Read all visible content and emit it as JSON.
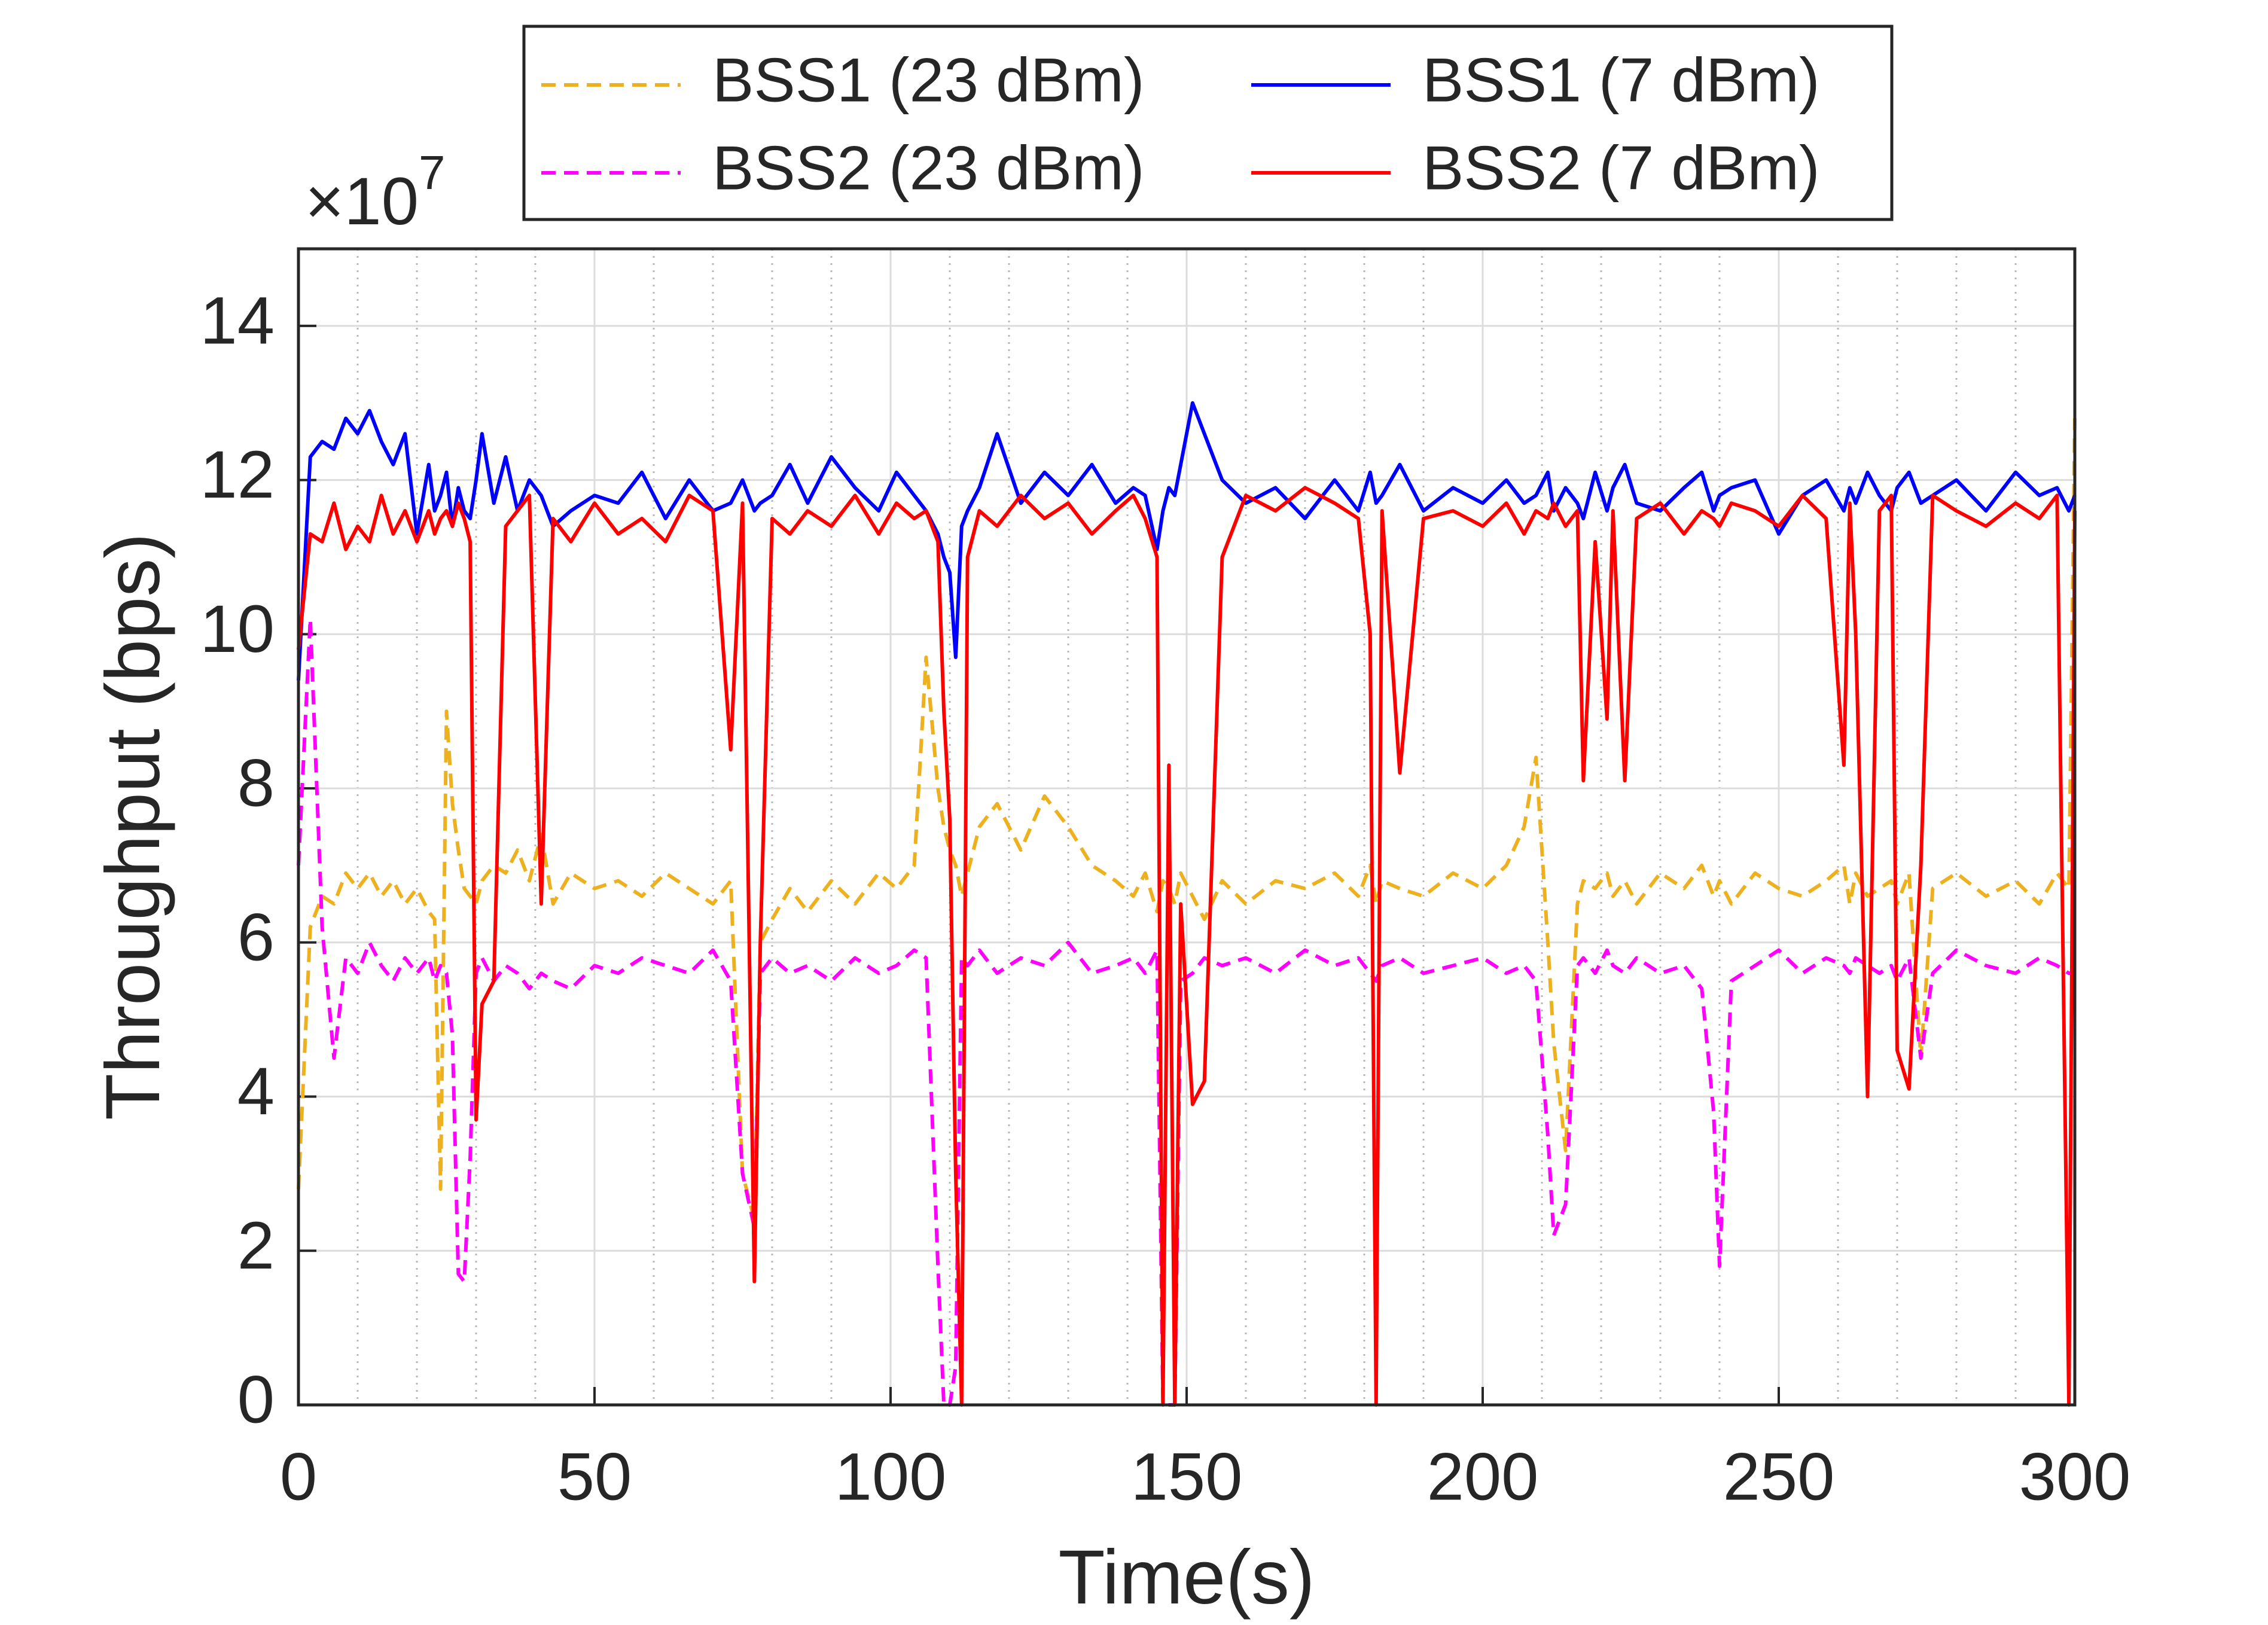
{
  "chart_data": {
    "type": "line",
    "xlabel": "Time(s)",
    "ylabel": "Throughput (bps)",
    "y_multiplier": {
      "base": "×10",
      "exponent": "7"
    },
    "xlim": [
      0,
      300
    ],
    "xticks": [
      0,
      50,
      100,
      150,
      200,
      250,
      300
    ],
    "ylim": [
      0,
      15
    ],
    "yticks": [
      0,
      2,
      4,
      6,
      8,
      10,
      12,
      14
    ],
    "grid": true,
    "minor_grid_x": true,
    "legend_position": "top",
    "legend_columns": 2,
    "x": [
      0,
      2,
      4,
      6,
      8,
      10,
      12,
      14,
      16,
      18,
      20,
      22,
      23,
      24,
      25,
      26,
      27,
      28,
      29,
      30,
      31,
      33,
      35,
      37,
      39,
      41,
      43,
      46,
      50,
      54,
      58,
      62,
      66,
      70,
      73,
      75,
      77,
      78,
      80,
      83,
      86,
      90,
      94,
      98,
      101,
      104,
      106,
      108,
      109,
      110,
      111,
      112,
      113,
      115,
      118,
      122,
      126,
      130,
      134,
      138,
      141,
      143,
      145,
      146,
      147,
      148,
      149,
      151,
      153,
      156,
      160,
      165,
      170,
      175,
      179,
      181,
      182,
      183,
      186,
      190,
      195,
      200,
      204,
      207,
      209,
      211,
      212,
      214,
      216,
      217,
      219,
      221,
      222,
      224,
      226,
      230,
      234,
      237,
      239,
      240,
      242,
      246,
      250,
      254,
      258,
      261,
      262,
      263,
      265,
      267,
      269,
      270,
      272,
      274,
      276,
      280,
      285,
      290,
      294,
      297,
      299,
      300
    ],
    "series": [
      {
        "name": "BSS1 (23 dBm)",
        "color": "#EDB120",
        "dashed": true,
        "values": [
          2.8,
          6.2,
          6.6,
          6.5,
          6.9,
          6.7,
          6.9,
          6.6,
          6.8,
          6.5,
          6.7,
          6.4,
          6.3,
          2.8,
          9.0,
          7.8,
          7.2,
          6.7,
          6.6,
          6.5,
          6.8,
          7.0,
          6.9,
          7.2,
          6.8,
          7.4,
          6.5,
          6.9,
          6.7,
          6.8,
          6.6,
          6.9,
          6.7,
          6.5,
          6.8,
          3.0,
          2.4,
          6.0,
          6.3,
          6.7,
          6.4,
          6.8,
          6.5,
          6.9,
          6.7,
          7.0,
          9.7,
          8.0,
          7.5,
          7.2,
          7.0,
          6.6,
          6.9,
          7.5,
          7.8,
          7.2,
          7.9,
          7.5,
          7.0,
          6.8,
          6.6,
          6.9,
          6.4,
          6.8,
          6.7,
          6.5,
          6.9,
          6.6,
          6.3,
          6.8,
          6.5,
          6.8,
          6.7,
          6.9,
          6.6,
          7.0,
          6.5,
          6.8,
          6.7,
          6.6,
          6.9,
          6.7,
          7.0,
          7.5,
          8.4,
          6.0,
          4.7,
          3.3,
          6.5,
          6.8,
          6.7,
          6.9,
          6.6,
          6.8,
          6.5,
          6.9,
          6.7,
          7.0,
          6.6,
          6.8,
          6.5,
          6.9,
          6.7,
          6.6,
          6.8,
          7.0,
          6.5,
          6.9,
          6.6,
          6.7,
          6.8,
          6.5,
          6.9,
          4.5,
          6.7,
          6.9,
          6.6,
          6.8,
          6.5,
          6.9,
          6.7,
          12.8
        ]
      },
      {
        "name": "BSS2 (23 dBm)",
        "color": "#FF00FF",
        "dashed": true,
        "values": [
          7.0,
          10.2,
          6.2,
          4.5,
          5.8,
          5.6,
          6.0,
          5.7,
          5.5,
          5.8,
          5.6,
          5.8,
          5.5,
          5.7,
          5.6,
          4.8,
          1.7,
          1.6,
          3.2,
          5.6,
          5.8,
          5.5,
          5.7,
          5.6,
          5.4,
          5.6,
          5.5,
          5.4,
          5.7,
          5.6,
          5.8,
          5.7,
          5.6,
          5.9,
          5.5,
          3.0,
          2.3,
          5.6,
          5.8,
          5.6,
          5.7,
          5.5,
          5.8,
          5.6,
          5.7,
          5.9,
          5.8,
          1.8,
          0,
          0,
          0.5,
          5.8,
          5.7,
          5.9,
          5.6,
          5.8,
          5.7,
          6.0,
          5.6,
          5.7,
          5.8,
          5.6,
          5.9,
          0,
          0,
          0,
          5.5,
          5.6,
          5.8,
          5.7,
          5.8,
          5.6,
          5.9,
          5.7,
          5.8,
          5.6,
          5.5,
          5.7,
          5.8,
          5.6,
          5.7,
          5.8,
          5.6,
          5.7,
          5.5,
          3.5,
          2.2,
          2.6,
          5.7,
          5.8,
          5.6,
          5.9,
          5.7,
          5.6,
          5.8,
          5.6,
          5.7,
          5.4,
          3.8,
          1.8,
          5.5,
          5.7,
          5.9,
          5.6,
          5.8,
          5.7,
          5.6,
          5.8,
          5.7,
          5.6,
          5.7,
          5.5,
          5.8,
          4.5,
          5.6,
          5.9,
          5.7,
          5.6,
          5.8,
          5.7,
          5.6,
          5.6
        ]
      },
      {
        "name": "BSS1 (7 dBm)",
        "color": "#0000FF",
        "dashed": false,
        "values": [
          9.4,
          12.3,
          12.5,
          12.4,
          12.8,
          12.6,
          12.9,
          12.5,
          12.2,
          12.6,
          11.3,
          12.2,
          11.6,
          11.8,
          12.1,
          11.4,
          11.9,
          11.6,
          11.5,
          12.0,
          12.6,
          11.7,
          12.3,
          11.6,
          12.0,
          11.8,
          11.4,
          11.6,
          11.8,
          11.7,
          12.1,
          11.5,
          12.0,
          11.6,
          11.7,
          12.0,
          11.6,
          11.7,
          11.8,
          12.2,
          11.7,
          12.3,
          11.9,
          11.6,
          12.1,
          11.8,
          11.6,
          11.3,
          11.0,
          10.8,
          9.7,
          11.4,
          11.6,
          11.9,
          12.6,
          11.7,
          12.1,
          11.8,
          12.2,
          11.7,
          11.9,
          11.8,
          11.1,
          11.6,
          11.9,
          11.8,
          12.2,
          13.0,
          12.6,
          12.0,
          11.7,
          11.9,
          11.5,
          12.0,
          11.6,
          12.1,
          11.7,
          11.8,
          12.2,
          11.6,
          11.9,
          11.7,
          12.0,
          11.7,
          11.8,
          12.1,
          11.6,
          11.9,
          11.7,
          11.5,
          12.1,
          11.6,
          11.9,
          12.2,
          11.7,
          11.6,
          11.9,
          12.1,
          11.6,
          11.8,
          11.9,
          12.0,
          11.3,
          11.8,
          12.0,
          11.6,
          11.9,
          11.7,
          12.1,
          11.8,
          11.6,
          11.9,
          12.1,
          11.7,
          11.8,
          12.0,
          11.6,
          12.1,
          11.8,
          11.9,
          11.6,
          11.8
        ]
      },
      {
        "name": "BSS2 (7 dBm)",
        "color": "#FF0000",
        "dashed": false,
        "values": [
          9.8,
          11.3,
          11.2,
          11.7,
          11.1,
          11.4,
          11.2,
          11.8,
          11.3,
          11.6,
          11.2,
          11.6,
          11.3,
          11.5,
          11.6,
          11.4,
          11.7,
          11.5,
          11.2,
          3.7,
          5.2,
          5.5,
          11.4,
          11.6,
          11.8,
          6.5,
          11.5,
          11.2,
          11.7,
          11.3,
          11.5,
          11.2,
          11.8,
          11.6,
          8.5,
          11.7,
          1.6,
          6.0,
          11.5,
          11.3,
          11.6,
          11.4,
          11.8,
          11.3,
          11.7,
          11.5,
          11.6,
          11.2,
          9.0,
          7.6,
          3.0,
          0,
          11.0,
          11.6,
          11.4,
          11.8,
          11.5,
          11.7,
          11.3,
          11.6,
          11.8,
          11.5,
          11.0,
          0,
          8.3,
          0,
          6.5,
          3.9,
          4.2,
          11.0,
          11.8,
          11.6,
          11.9,
          11.7,
          11.5,
          10.0,
          0,
          11.6,
          8.2,
          11.5,
          11.6,
          11.4,
          11.7,
          11.3,
          11.6,
          11.5,
          11.7,
          11.4,
          11.6,
          8.1,
          11.2,
          8.9,
          11.6,
          8.1,
          11.5,
          11.7,
          11.3,
          11.6,
          11.5,
          11.4,
          11.7,
          11.6,
          11.4,
          11.8,
          11.5,
          8.3,
          11.7,
          10.0,
          4.0,
          11.6,
          11.8,
          4.6,
          4.1,
          7.0,
          11.8,
          11.6,
          11.4,
          11.7,
          11.5,
          11.8,
          0,
          11.6
        ]
      }
    ]
  }
}
